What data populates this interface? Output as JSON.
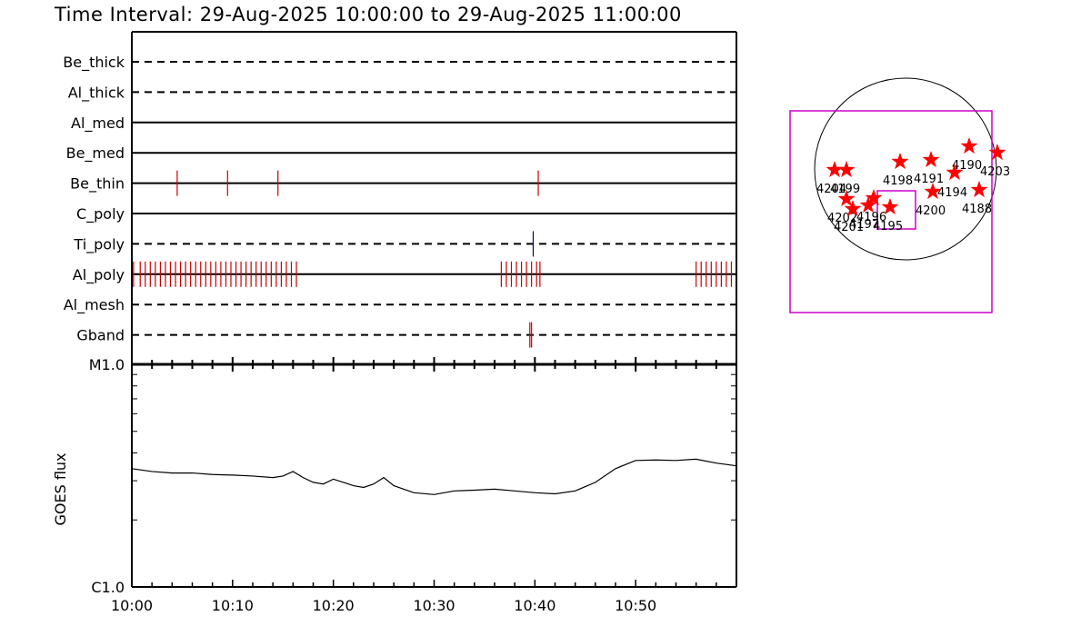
{
  "title": "Time Interval: 29-Aug-2025 10:00:00 to 29-Aug-2025 11:00:00",
  "colors": {
    "axis": "#000000",
    "event": "#cc0000",
    "event_blue": "#000080",
    "map_box": "#cc00cc",
    "star": "#ff0000",
    "flux": "#000000"
  },
  "chart_data": [
    {
      "type": "timeline",
      "xlabel": "",
      "x_range": [
        "10:00",
        "11:00"
      ],
      "x_ticks": [
        "10:00",
        "10:10",
        "10:20",
        "10:30",
        "10:40",
        "10:50"
      ],
      "rows": [
        {
          "name": "Be_thick",
          "style": "dashed",
          "events": []
        },
        {
          "name": "Al_thick",
          "style": "dashed",
          "events": []
        },
        {
          "name": "Al_med",
          "style": "solid",
          "events": []
        },
        {
          "name": "Be_med",
          "style": "solid",
          "events": []
        },
        {
          "name": "Be_thin",
          "style": "solid",
          "events": [
            "10:04:30",
            "10:09:30",
            "10:14:30",
            "10:40:20"
          ]
        },
        {
          "name": "C_poly",
          "style": "solid",
          "events": []
        },
        {
          "name": "Ti_poly",
          "style": "dashed",
          "events": [
            "10:39:50"
          ],
          "color": "blue"
        },
        {
          "name": "Al_poly",
          "style": "solid",
          "events": [
            "10:00:10",
            "10:00:50",
            "10:01:20",
            "10:01:50",
            "10:02:20",
            "10:02:50",
            "10:03:20",
            "10:03:50",
            "10:04:20",
            "10:04:50",
            "10:05:20",
            "10:05:50",
            "10:06:20",
            "10:06:50",
            "10:07:20",
            "10:07:50",
            "10:08:20",
            "10:08:50",
            "10:09:20",
            "10:09:50",
            "10:10:20",
            "10:10:50",
            "10:11:20",
            "10:11:50",
            "10:12:20",
            "10:12:50",
            "10:13:20",
            "10:13:50",
            "10:14:20",
            "10:14:50",
            "10:15:20",
            "10:15:50",
            "10:16:20",
            "10:36:40",
            "10:37:10",
            "10:37:40",
            "10:38:10",
            "10:38:40",
            "10:39:10",
            "10:39:40",
            "10:40:10",
            "10:40:30",
            "10:56:00",
            "10:56:30",
            "10:57:00",
            "10:57:30",
            "10:58:00",
            "10:58:30",
            "10:59:00",
            "10:59:30"
          ]
        },
        {
          "name": "Al_mesh",
          "style": "dashed",
          "events": []
        },
        {
          "name": "Gband",
          "style": "dashed",
          "events": [
            "10:39:30",
            "10:39:40"
          ]
        }
      ]
    },
    {
      "type": "line",
      "ylabel": "GOES flux",
      "y_scale": "log",
      "y_range": [
        "C1.0",
        "M1.0"
      ],
      "y_tick_labels": [
        "C1.0",
        "M1.0"
      ],
      "x_range": [
        "10:00",
        "11:00"
      ],
      "x_ticks": [
        "10:00",
        "10:10",
        "10:20",
        "10:30",
        "10:40",
        "10:50"
      ],
      "series": [
        {
          "x": [
            "10:00",
            "10:02",
            "10:04",
            "10:06",
            "10:08",
            "10:10",
            "10:12",
            "10:14",
            "10:15",
            "10:16",
            "10:17",
            "10:18",
            "10:19",
            "10:20",
            "10:21",
            "10:22",
            "10:23",
            "10:24",
            "10:25",
            "10:26",
            "10:28",
            "10:30",
            "10:32",
            "10:34",
            "10:36",
            "10:38",
            "10:40",
            "10:42",
            "10:44",
            "10:46",
            "10:48",
            "10:50",
            "10:52",
            "10:54",
            "10:56",
            "10:58",
            "11:00"
          ],
          "y": [
            3.4,
            3.3,
            3.25,
            3.25,
            3.2,
            3.18,
            3.15,
            3.1,
            3.15,
            3.3,
            3.1,
            2.95,
            2.9,
            3.05,
            2.95,
            2.85,
            2.8,
            2.9,
            3.1,
            2.85,
            2.65,
            2.6,
            2.7,
            2.72,
            2.75,
            2.7,
            2.65,
            2.62,
            2.7,
            2.95,
            3.4,
            3.7,
            3.72,
            3.7,
            3.75,
            3.6,
            3.5
          ]
        }
      ]
    },
    {
      "type": "scatter",
      "title": "",
      "labels": [
        {
          "label": "4204"
        },
        {
          "label": "4199"
        },
        {
          "label": "4198"
        },
        {
          "label": "4191"
        },
        {
          "label": "4190"
        },
        {
          "label": "4203"
        },
        {
          "label": "4194"
        },
        {
          "label": "4188"
        },
        {
          "label": "4200"
        },
        {
          "label": "4202"
        },
        {
          "label": "4201"
        },
        {
          "label": "4197"
        },
        {
          "label": "4196"
        },
        {
          "label": "4195"
        }
      ]
    }
  ]
}
